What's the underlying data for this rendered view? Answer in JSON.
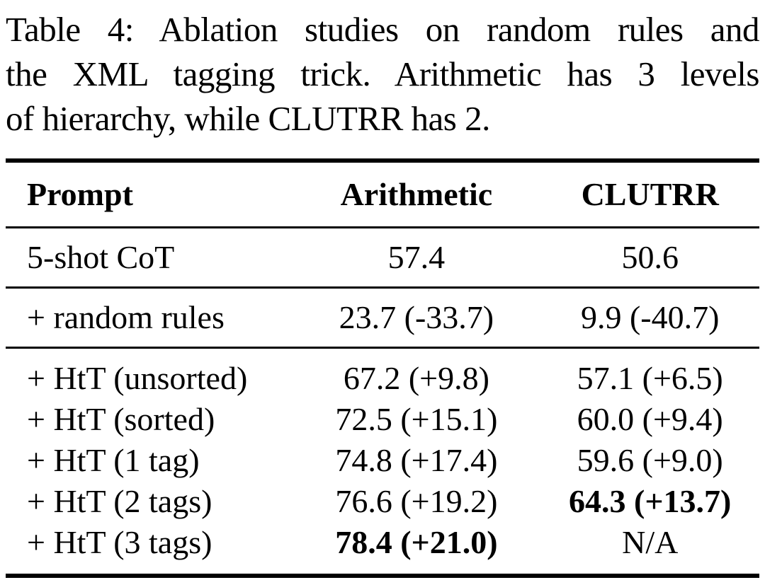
{
  "caption": {
    "label": "Table 4",
    "lines": [
      "Table 4: Ablation studies on random rules and",
      "the XML tagging trick. Arithmetic has 3 levels",
      "of hierarchy, while CLUTRR has 2."
    ]
  },
  "table": {
    "columns": [
      "Prompt",
      "Arithmetic",
      "CLUTRR"
    ],
    "groups": [
      {
        "rows": [
          {
            "prompt": "5-shot CoT",
            "arithmetic": "57.4",
            "clutrr": "50.6"
          }
        ]
      },
      {
        "rows": [
          {
            "prompt": "+ random rules",
            "arithmetic": "23.7 (-33.7)",
            "clutrr": "9.9 (-40.7)"
          }
        ]
      },
      {
        "rows": [
          {
            "prompt": "+ HtT (unsorted)",
            "arithmetic": "67.2 (+9.8)",
            "clutrr": "57.1 (+6.5)"
          },
          {
            "prompt": "+ HtT (sorted)",
            "arithmetic": "72.5 (+15.1)",
            "clutrr": "60.0 (+9.4)"
          },
          {
            "prompt": "+ HtT (1 tag)",
            "arithmetic": "74.8 (+17.4)",
            "clutrr": "59.6 (+9.0)"
          },
          {
            "prompt": "+ HtT (2 tags)",
            "arithmetic": "76.6 (+19.2)",
            "clutrr": "64.3 (+13.7)"
          },
          {
            "prompt": "+ HtT (3 tags)",
            "arithmetic": "78.4 (+21.0)",
            "clutrr": "N/A"
          }
        ]
      }
    ],
    "emphasis": {
      "bold_cells": [
        "groups.2.rows.3.clutrr",
        "groups.2.rows.4.arithmetic"
      ]
    },
    "colors": {
      "text": "#000000",
      "background": "#ffffff",
      "rule": "#000000"
    }
  }
}
